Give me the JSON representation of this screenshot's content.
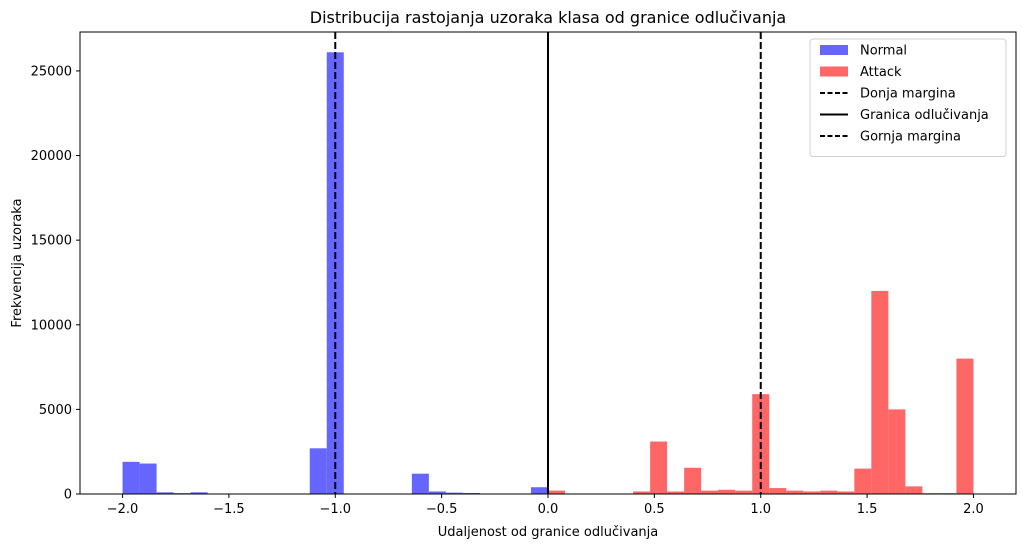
{
  "chart_data": {
    "type": "bar",
    "title": "Distribucija rastojanja uzoraka klasa od granice odlučivanja",
    "xlabel": "Udaljenost od granice odlučivanja",
    "ylabel": "Frekvencija uzoraka",
    "xlim": [
      -2.2,
      2.2
    ],
    "ylim": [
      0,
      27300
    ],
    "xticks": [
      -2.0,
      -1.5,
      -1.0,
      -0.5,
      0.0,
      0.5,
      1.0,
      1.5,
      2.0
    ],
    "xtick_labels": [
      "−2.0",
      "−1.5",
      "−1.0",
      "−0.5",
      "0.0",
      "0.5",
      "1.0",
      "1.5",
      "2.0"
    ],
    "yticks": [
      0,
      5000,
      10000,
      15000,
      20000,
      25000
    ],
    "ytick_labels": [
      "0",
      "5000",
      "10000",
      "15000",
      "20000",
      "25000"
    ],
    "bin_width": 0.08,
    "grid": false,
    "legend_position": "top-right",
    "series": [
      {
        "name": "Normal",
        "color": "#6666ff",
        "bins": [
          {
            "x": -2.0,
            "value": 1900
          },
          {
            "x": -1.92,
            "value": 1800
          },
          {
            "x": -1.84,
            "value": 100
          },
          {
            "x": -1.76,
            "value": 50
          },
          {
            "x": -1.68,
            "value": 100
          },
          {
            "x": -1.12,
            "value": 2700
          },
          {
            "x": -1.04,
            "value": 26100
          },
          {
            "x": -0.64,
            "value": 1200
          },
          {
            "x": -0.56,
            "value": 150
          },
          {
            "x": -0.48,
            "value": 80
          },
          {
            "x": -0.4,
            "value": 60
          },
          {
            "x": -0.08,
            "value": 400
          }
        ]
      },
      {
        "name": "Attack",
        "color": "#ff6666",
        "bins": [
          {
            "x": 0.0,
            "value": 200
          },
          {
            "x": 0.4,
            "value": 150
          },
          {
            "x": 0.48,
            "value": 3100
          },
          {
            "x": 0.56,
            "value": 150
          },
          {
            "x": 0.64,
            "value": 1550
          },
          {
            "x": 0.72,
            "value": 200
          },
          {
            "x": 0.8,
            "value": 250
          },
          {
            "x": 0.88,
            "value": 200
          },
          {
            "x": 0.96,
            "value": 5900
          },
          {
            "x": 1.04,
            "value": 350
          },
          {
            "x": 1.12,
            "value": 200
          },
          {
            "x": 1.2,
            "value": 150
          },
          {
            "x": 1.28,
            "value": 200
          },
          {
            "x": 1.36,
            "value": 150
          },
          {
            "x": 1.44,
            "value": 1500
          },
          {
            "x": 1.52,
            "value": 12000
          },
          {
            "x": 1.6,
            "value": 5000
          },
          {
            "x": 1.68,
            "value": 450
          },
          {
            "x": 1.76,
            "value": 50
          },
          {
            "x": 1.84,
            "value": 50
          },
          {
            "x": 1.92,
            "value": 8000
          }
        ]
      }
    ],
    "vlines": [
      {
        "name": "Donja margina",
        "x": -1.0,
        "style": "dashed",
        "color": "#000000"
      },
      {
        "name": "Granica odlučivanja",
        "x": 0.0,
        "style": "solid",
        "color": "#000000"
      },
      {
        "name": "Gornja margina",
        "x": 1.0,
        "style": "dashed",
        "color": "#000000"
      }
    ]
  }
}
